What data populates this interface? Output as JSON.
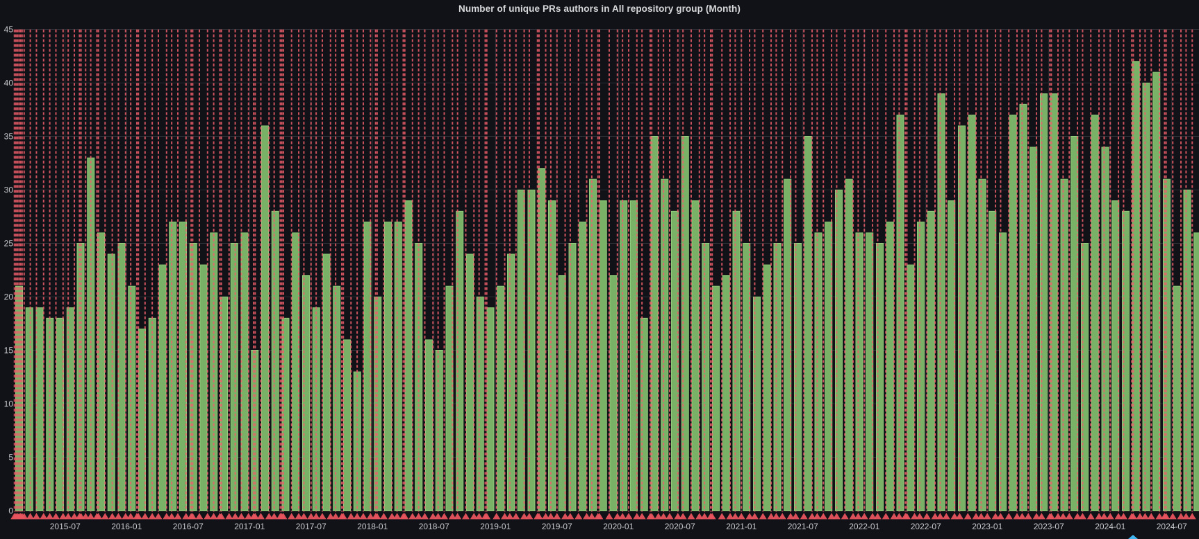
{
  "panel": {
    "title": "Number of unique PRs authors in All repository group (Month)"
  },
  "colors": {
    "background": "#111217",
    "grid": "#2a2d33",
    "axis_text": "#c7c8cc",
    "title_text": "#d8d9da",
    "bar_fill": "#79b267",
    "bar_border": "#8fcb7a",
    "annotation_line": "#ef5f6c",
    "annotation_marker": "#e8545e",
    "extra_marker_blue": "#3fb5f0"
  },
  "chart_data": {
    "type": "bar",
    "title": "Number of unique PRs authors in All repository group (Month)",
    "xlabel": "",
    "ylabel": "",
    "ylim": [
      0,
      45
    ],
    "y_ticks": [
      0,
      5,
      10,
      15,
      20,
      25,
      30,
      35,
      40,
      45
    ],
    "grid": true,
    "legend_position": "none",
    "x": [
      "2015-02",
      "2015-03",
      "2015-04",
      "2015-05",
      "2015-06",
      "2015-07",
      "2015-08",
      "2015-09",
      "2015-10",
      "2015-11",
      "2015-12",
      "2016-01",
      "2016-02",
      "2016-03",
      "2016-04",
      "2016-05",
      "2016-06",
      "2016-07",
      "2016-08",
      "2016-09",
      "2016-10",
      "2016-11",
      "2016-12",
      "2017-01",
      "2017-02",
      "2017-03",
      "2017-04",
      "2017-05",
      "2017-06",
      "2017-07",
      "2017-08",
      "2017-09",
      "2017-10",
      "2017-11",
      "2017-12",
      "2018-01",
      "2018-02",
      "2018-03",
      "2018-04",
      "2018-05",
      "2018-06",
      "2018-07",
      "2018-08",
      "2018-09",
      "2018-10",
      "2018-11",
      "2018-12",
      "2019-01",
      "2019-02",
      "2019-03",
      "2019-04",
      "2019-05",
      "2019-06",
      "2019-07",
      "2019-08",
      "2019-09",
      "2019-10",
      "2019-11",
      "2019-12",
      "2020-01",
      "2020-02",
      "2020-03",
      "2020-04",
      "2020-05",
      "2020-06",
      "2020-07",
      "2020-08",
      "2020-09",
      "2020-10",
      "2020-11",
      "2020-12",
      "2021-01",
      "2021-02",
      "2021-03",
      "2021-04",
      "2021-05",
      "2021-06",
      "2021-07",
      "2021-08",
      "2021-09",
      "2021-10",
      "2021-11",
      "2021-12",
      "2022-01",
      "2022-02",
      "2022-03",
      "2022-04",
      "2022-05",
      "2022-06",
      "2022-07",
      "2022-08",
      "2022-09",
      "2022-10",
      "2022-11",
      "2022-12",
      "2023-01",
      "2023-02",
      "2023-03",
      "2023-04",
      "2023-05",
      "2023-06",
      "2023-07",
      "2023-08",
      "2023-09",
      "2023-10",
      "2023-11",
      "2023-12",
      "2024-01",
      "2024-02",
      "2024-03",
      "2024-04",
      "2024-05",
      "2024-06",
      "2024-07",
      "2024-08",
      "2024-09"
    ],
    "values": [
      21,
      19,
      19,
      18,
      18,
      19,
      25,
      33,
      26,
      24,
      25,
      21,
      17,
      18,
      23,
      27,
      27,
      25,
      23,
      26,
      20,
      25,
      26,
      15,
      36,
      28,
      18,
      26,
      22,
      19,
      24,
      21,
      16,
      13,
      27,
      20,
      27,
      27,
      29,
      25,
      16,
      15,
      21,
      28,
      24,
      20,
      19,
      21,
      24,
      30,
      30,
      32,
      29,
      22,
      25,
      27,
      31,
      29,
      22,
      29,
      29,
      18,
      35,
      31,
      28,
      35,
      29,
      25,
      21,
      22,
      28,
      25,
      20,
      23,
      25,
      31,
      25,
      35,
      26,
      27,
      30,
      31,
      26,
      26,
      25,
      27,
      37,
      23,
      27,
      28,
      39,
      29,
      36,
      37,
      31,
      28,
      26,
      37,
      38,
      34,
      39,
      39,
      31,
      35,
      25,
      37,
      34,
      29,
      28,
      42,
      40,
      41,
      31,
      21,
      30,
      26
    ],
    "x_tick_labels": [
      "2015-07",
      "2016-01",
      "2016-07",
      "2017-01",
      "2017-07",
      "2018-01",
      "2018-07",
      "2019-01",
      "2019-07",
      "2020-01",
      "2020-07",
      "2021-01",
      "2021-07",
      "2022-01",
      "2022-07",
      "2023-01",
      "2023-07",
      "2024-01",
      "2024-07"
    ],
    "annotations": {
      "style": "vertical-dashed-red-line-with-bottom-triangle",
      "month_positions": [
        0.05,
        0.2,
        0.35,
        0.5,
        0.65,
        0.8,
        1.0,
        1.6,
        2.2,
        2.9,
        3.5,
        4.1,
        4.8,
        5.3,
        5.9,
        6.4,
        6.55,
        7.0,
        7.5,
        8.1,
        8.25,
        8.9,
        9.6,
        10.2,
        10.9,
        11.4,
        12.0,
        12.15,
        12.8,
        13.5,
        14.1,
        14.9,
        15.4,
        16.0,
        16.8,
        17.3,
        17.45,
        18.1,
        18.9,
        19.5,
        20.1,
        20.25,
        21.0,
        21.6,
        22.2,
        22.9,
        23.4,
        23.55,
        24.1,
        24.9,
        25.4,
        26.0,
        26.15,
        26.3,
        27.1,
        27.8,
        28.3,
        29.0,
        29.5,
        30.1,
        30.9,
        31.4,
        32.0,
        32.15,
        32.9,
        33.5,
        34.1,
        34.8,
        35.3,
        35.45,
        36.1,
        36.9,
        37.4,
        38.0,
        38.15,
        38.9,
        39.5,
        40.1,
        40.9,
        41.4,
        42.0,
        42.8,
        43.3,
        44.1,
        44.9,
        45.4,
        46.0,
        46.15,
        47.1,
        47.9,
        48.4,
        49.0,
        49.8,
        50.3,
        51.1,
        51.25,
        51.9,
        52.4,
        53.0,
        53.8,
        54.3,
        55.1,
        55.9,
        56.4,
        57.0,
        57.15,
        58.1,
        58.9,
        59.4,
        60.0,
        60.8,
        61.3,
        62.1,
        62.25,
        62.9,
        63.4,
        64.0,
        64.8,
        65.3,
        66.1,
        66.9,
        67.4,
        68.0,
        68.15,
        69.1,
        69.9,
        70.4,
        71.0,
        71.8,
        72.3,
        73.1,
        73.9,
        74.4,
        75.0,
        75.8,
        76.3,
        77.1,
        77.9,
        78.4,
        79.0,
        79.8,
        80.3,
        81.1,
        81.9,
        82.4,
        83.0,
        83.8,
        84.3,
        85.1,
        85.9,
        86.4,
        87.0,
        87.15,
        87.9,
        88.4,
        89.1,
        89.9,
        90.4,
        91.0,
        91.8,
        92.3,
        93.1,
        93.9,
        94.4,
        95.0,
        95.8,
        96.3,
        97.1,
        97.9,
        98.4,
        99.0,
        99.8,
        100.3,
        101.1,
        101.25,
        101.9,
        102.4,
        103.0,
        103.8,
        104.3,
        105.1,
        105.9,
        106.4,
        107.0,
        107.8,
        108.3,
        109.1,
        109.25,
        109.9,
        110.4,
        111.0,
        111.8,
        112.3,
        112.45,
        113.1,
        113.9,
        114.4,
        115.0
      ]
    }
  }
}
